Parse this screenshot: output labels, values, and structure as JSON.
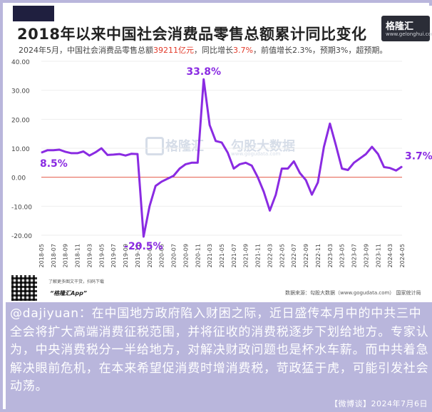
{
  "header": {
    "title": "2018年以来中国社会消费品零售总额累计同比变化",
    "subtitle_prefix": "2024年5月，中国社会消费品零售总额",
    "subtitle_amount": "39211亿元",
    "subtitle_mid": "，同比增长",
    "subtitle_growth": "3.7%",
    "subtitle_suffix": "，前值增长2.3%，预期3%，超预期。"
  },
  "logo": {
    "name": "格隆汇",
    "url": "www.gelonghui.com"
  },
  "watermark": {
    "brand": "格隆汇",
    "brand2": "勾股大数据",
    "url": "www.gogudata.com"
  },
  "footer": {
    "app_hint": "了解更多图文干货，扫码下载",
    "app_name": "“格隆汇App”",
    "source": "数据来源：勾股大数据（www.gogudata.com）  国家统计局"
  },
  "post": {
    "text": "@dajiyuan：在中国地方政府陷入财困之际，近日盛传本月中的中共三中全会将扩大高端消费征税范围，并将征收的消费税逐步下划给地方。专家认为，中央消费税分一半给地方，对解决财政问题也是杯水车薪。而中共着急解决眼前危机，在本来希望促消费时增消费税，苛政猛于虎，可能引发社会动荡。",
    "meta": "【微博谈】2024年7月6日"
  },
  "colors": {
    "line": "#8a2be2",
    "zero_line": "#e55a4a",
    "annotation": "#8a2be2",
    "post_bg": "#b9b6dc"
  },
  "chart_data": {
    "type": "line",
    "title": "2018年以来中国社会消费品零售总额累计同比变化",
    "ylim": [
      -20,
      40
    ],
    "yticks": [
      "40.00",
      "30.00",
      "20.00",
      "10.00",
      "0.00",
      "-10.00",
      "-20.00"
    ],
    "ytick_values": [
      40,
      30,
      20,
      10,
      0,
      -10,
      -20
    ],
    "xtick_labels": [
      "2018-05",
      "2018-07",
      "2018-09",
      "2018-11",
      "2019-03",
      "2019-05",
      "2019-07",
      "2019-09",
      "2019-11",
      "2020-03",
      "2020-05",
      "2020-07",
      "2020-09",
      "2020-11",
      "2021-03",
      "2021-05",
      "2021-07",
      "2021-09",
      "2021-11",
      "2022-03",
      "2022-05",
      "2022-07",
      "2022-09",
      "2022-11",
      "2023-03",
      "2023-05",
      "2023-07",
      "2023-09",
      "2023-11",
      "2024-03",
      "2024-05"
    ],
    "series": [
      {
        "values": [
          8.5,
          9.3,
          9.3,
          9.5,
          8.8,
          8.3,
          8.3,
          8.9,
          7.5,
          8.6,
          10.0,
          7.7,
          7.8,
          8.0,
          7.5,
          8.1,
          8.0,
          -20.5,
          -10.0,
          -3.0,
          -1.5,
          -0.5,
          0.5,
          3.0,
          4.5,
          5.0,
          5.0,
          33.8,
          18.0,
          12.5,
          12.0,
          8.5,
          3.0,
          4.5,
          5.0,
          4.0,
          0.0,
          -5.0,
          -11.5,
          -6.0,
          3.0,
          3.0,
          5.5,
          1.5,
          -1.0,
          -6.0,
          -1.8,
          10.5,
          18.5,
          11.0,
          3.0,
          2.5,
          5.0,
          6.5,
          8.0,
          10.5,
          8.0,
          3.5,
          3.2,
          2.3,
          3.7
        ]
      }
    ],
    "annotations": [
      {
        "label": "8.5%",
        "index": 0,
        "value": 8.5
      },
      {
        "label": "33.8%",
        "index": 27,
        "value": 33.8
      },
      {
        "label": "-20.5%",
        "index": 17,
        "value": -20.5
      },
      {
        "label": "3.7%",
        "index": 60,
        "value": 3.7
      }
    ]
  }
}
